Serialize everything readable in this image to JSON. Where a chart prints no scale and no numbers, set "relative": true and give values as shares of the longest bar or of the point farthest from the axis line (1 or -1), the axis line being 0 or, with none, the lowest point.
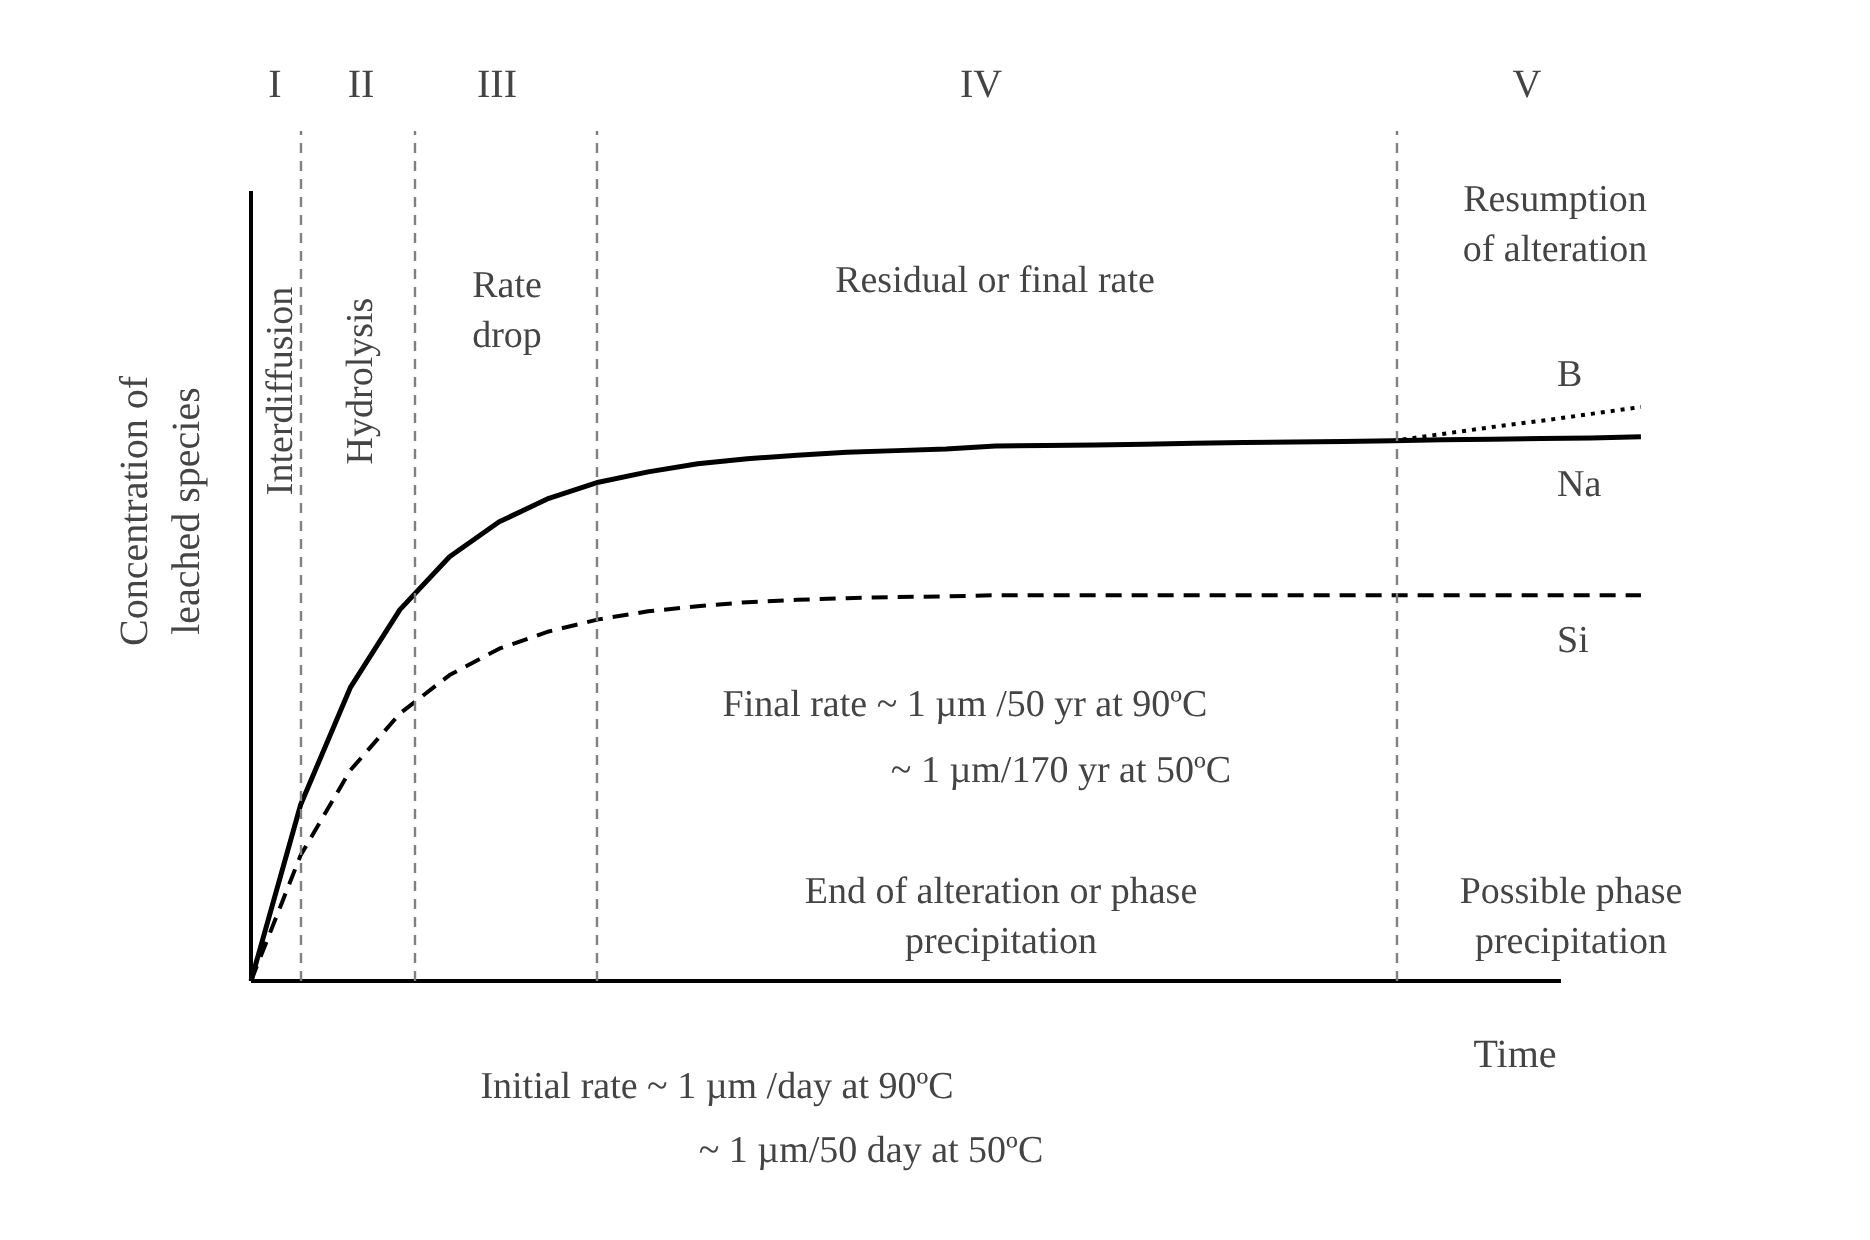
{
  "chart_data": {
    "type": "line",
    "relative": true,
    "ylabel": "Concentration of\nleached species",
    "xlabel": "Time",
    "categories": [
      null,
      null,
      null,
      null,
      null,
      null,
      null,
      null,
      null,
      null,
      null,
      null,
      null,
      null,
      null,
      null,
      null,
      null,
      null,
      null,
      null,
      null,
      null,
      null,
      null,
      null,
      null,
      null,
      null
    ],
    "series": [
      {
        "name": "B",
        "color": "#000000",
        "line_style": "dotted",
        "values": [
          null,
          null,
          null,
          null,
          null,
          null,
          null,
          null,
          null,
          null,
          null,
          null,
          null,
          null,
          null,
          null,
          null,
          null,
          null,
          null,
          null,
          null,
          null,
          0.941,
          0.953,
          0.965,
          0.976,
          0.988,
          1.0
        ]
      },
      {
        "name": "Na",
        "color": "#000000",
        "line_style": "solid",
        "values": [
          0,
          0.307,
          0.511,
          0.647,
          0.739,
          0.8,
          0.841,
          0.869,
          0.887,
          0.901,
          0.91,
          0.916,
          0.921,
          0.924,
          0.927,
          0.932,
          0.933,
          0.934,
          0.935,
          0.937,
          0.938,
          0.939,
          0.94,
          0.941,
          0.943,
          0.944,
          0.945,
          0.946,
          0.948
        ]
      },
      {
        "name": "Si",
        "color": "#000000",
        "line_style": "dashed",
        "values": [
          0,
          0.219,
          0.367,
          0.466,
          0.533,
          0.579,
          0.609,
          0.63,
          0.644,
          0.653,
          0.66,
          0.664,
          0.667,
          0.669,
          0.67,
          0.672,
          0.672,
          0.672,
          0.672,
          0.672,
          0.672,
          0.672,
          0.672,
          0.672,
          0.672,
          0.672,
          0.672,
          0.672,
          0.672
        ]
      }
    ],
    "annotations": [
      "I",
      "II",
      "III",
      "IV",
      "V",
      "Interdiffusion",
      "Hydrolysis",
      "Rate\ndrop",
      "Residual or final rate",
      "Resumption\nof alteration",
      "Final rate ~ 1 µm /50 yr at 90ºC",
      "~ 1 µm/170 yr at 50ºC",
      "End of alteration or phase\nprecipitation",
      "Possible phase\nprecipitation",
      "Initial rate ~ 1 µm /day at 90ºC",
      "~ 1 µm/50 day at 50ºC"
    ],
    "grid": "x",
    "marker": "none"
  }
}
